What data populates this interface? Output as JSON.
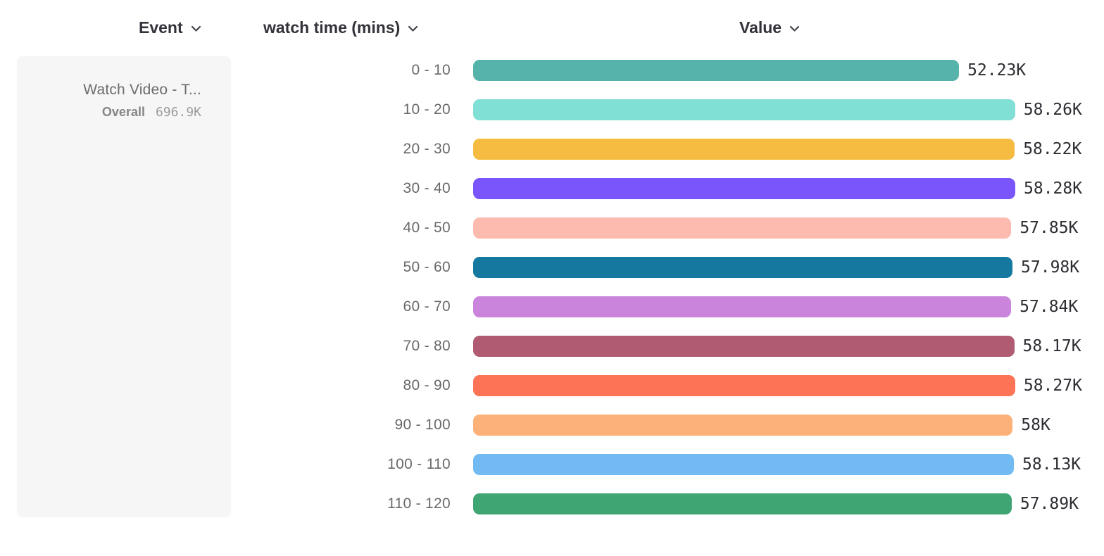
{
  "header": {
    "columns": [
      {
        "label": "Event"
      },
      {
        "label": "watch time (mins)"
      },
      {
        "label": "Value"
      }
    ]
  },
  "event_card": {
    "title": "Watch Video - T...",
    "overall_label": "Overall",
    "overall_value": "696.9K"
  },
  "chart_data": {
    "type": "bar",
    "orientation": "horizontal",
    "title": "",
    "xlabel": "Value",
    "ylabel": "watch time (mins)",
    "xlim": [
      0,
      58.28
    ],
    "value_unit": "K",
    "grid": false,
    "legend": false,
    "categories": [
      "0 - 10",
      "10 - 20",
      "20 - 30",
      "30 - 40",
      "40 - 50",
      "50 - 60",
      "60 - 70",
      "70 - 80",
      "80 - 90",
      "90 - 100",
      "100 - 110",
      "110 - 120"
    ],
    "values": [
      52.23,
      58.26,
      58.22,
      58.28,
      57.85,
      57.98,
      57.84,
      58.17,
      58.27,
      58.0,
      58.13,
      57.89
    ],
    "value_labels": [
      "52.23K",
      "58.26K",
      "58.22K",
      "58.28K",
      "57.85K",
      "57.98K",
      "57.84K",
      "58.17K",
      "58.27K",
      "58K",
      "58.13K",
      "57.89K"
    ],
    "bar_colors": [
      "#56B3AC",
      "#80E0D5",
      "#F6BC41",
      "#7A55FB",
      "#FCBBAE",
      "#15799F",
      "#CA84DC",
      "#B05B72",
      "#FD7356",
      "#FCB179",
      "#72BAF2",
      "#3FA573"
    ]
  }
}
